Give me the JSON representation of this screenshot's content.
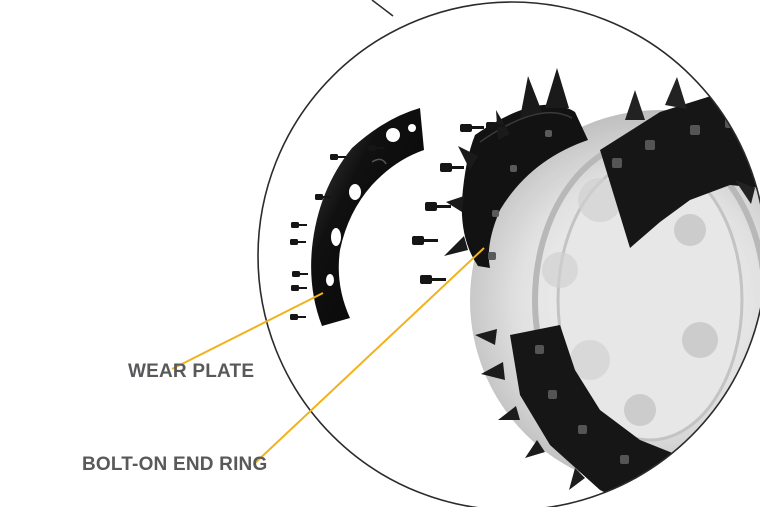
{
  "colors": {
    "label_text": "#58595b",
    "callout_line": "#f2b21c",
    "circle_outline": "#2b2b2b",
    "part_dark": "#141414",
    "part_highlight": "#3a3a3a",
    "ghost_drum": "#c9c9c9"
  },
  "callouts": {
    "wear_plate": "WEAR PLATE",
    "end_ring": "BOLT-ON END RING"
  }
}
